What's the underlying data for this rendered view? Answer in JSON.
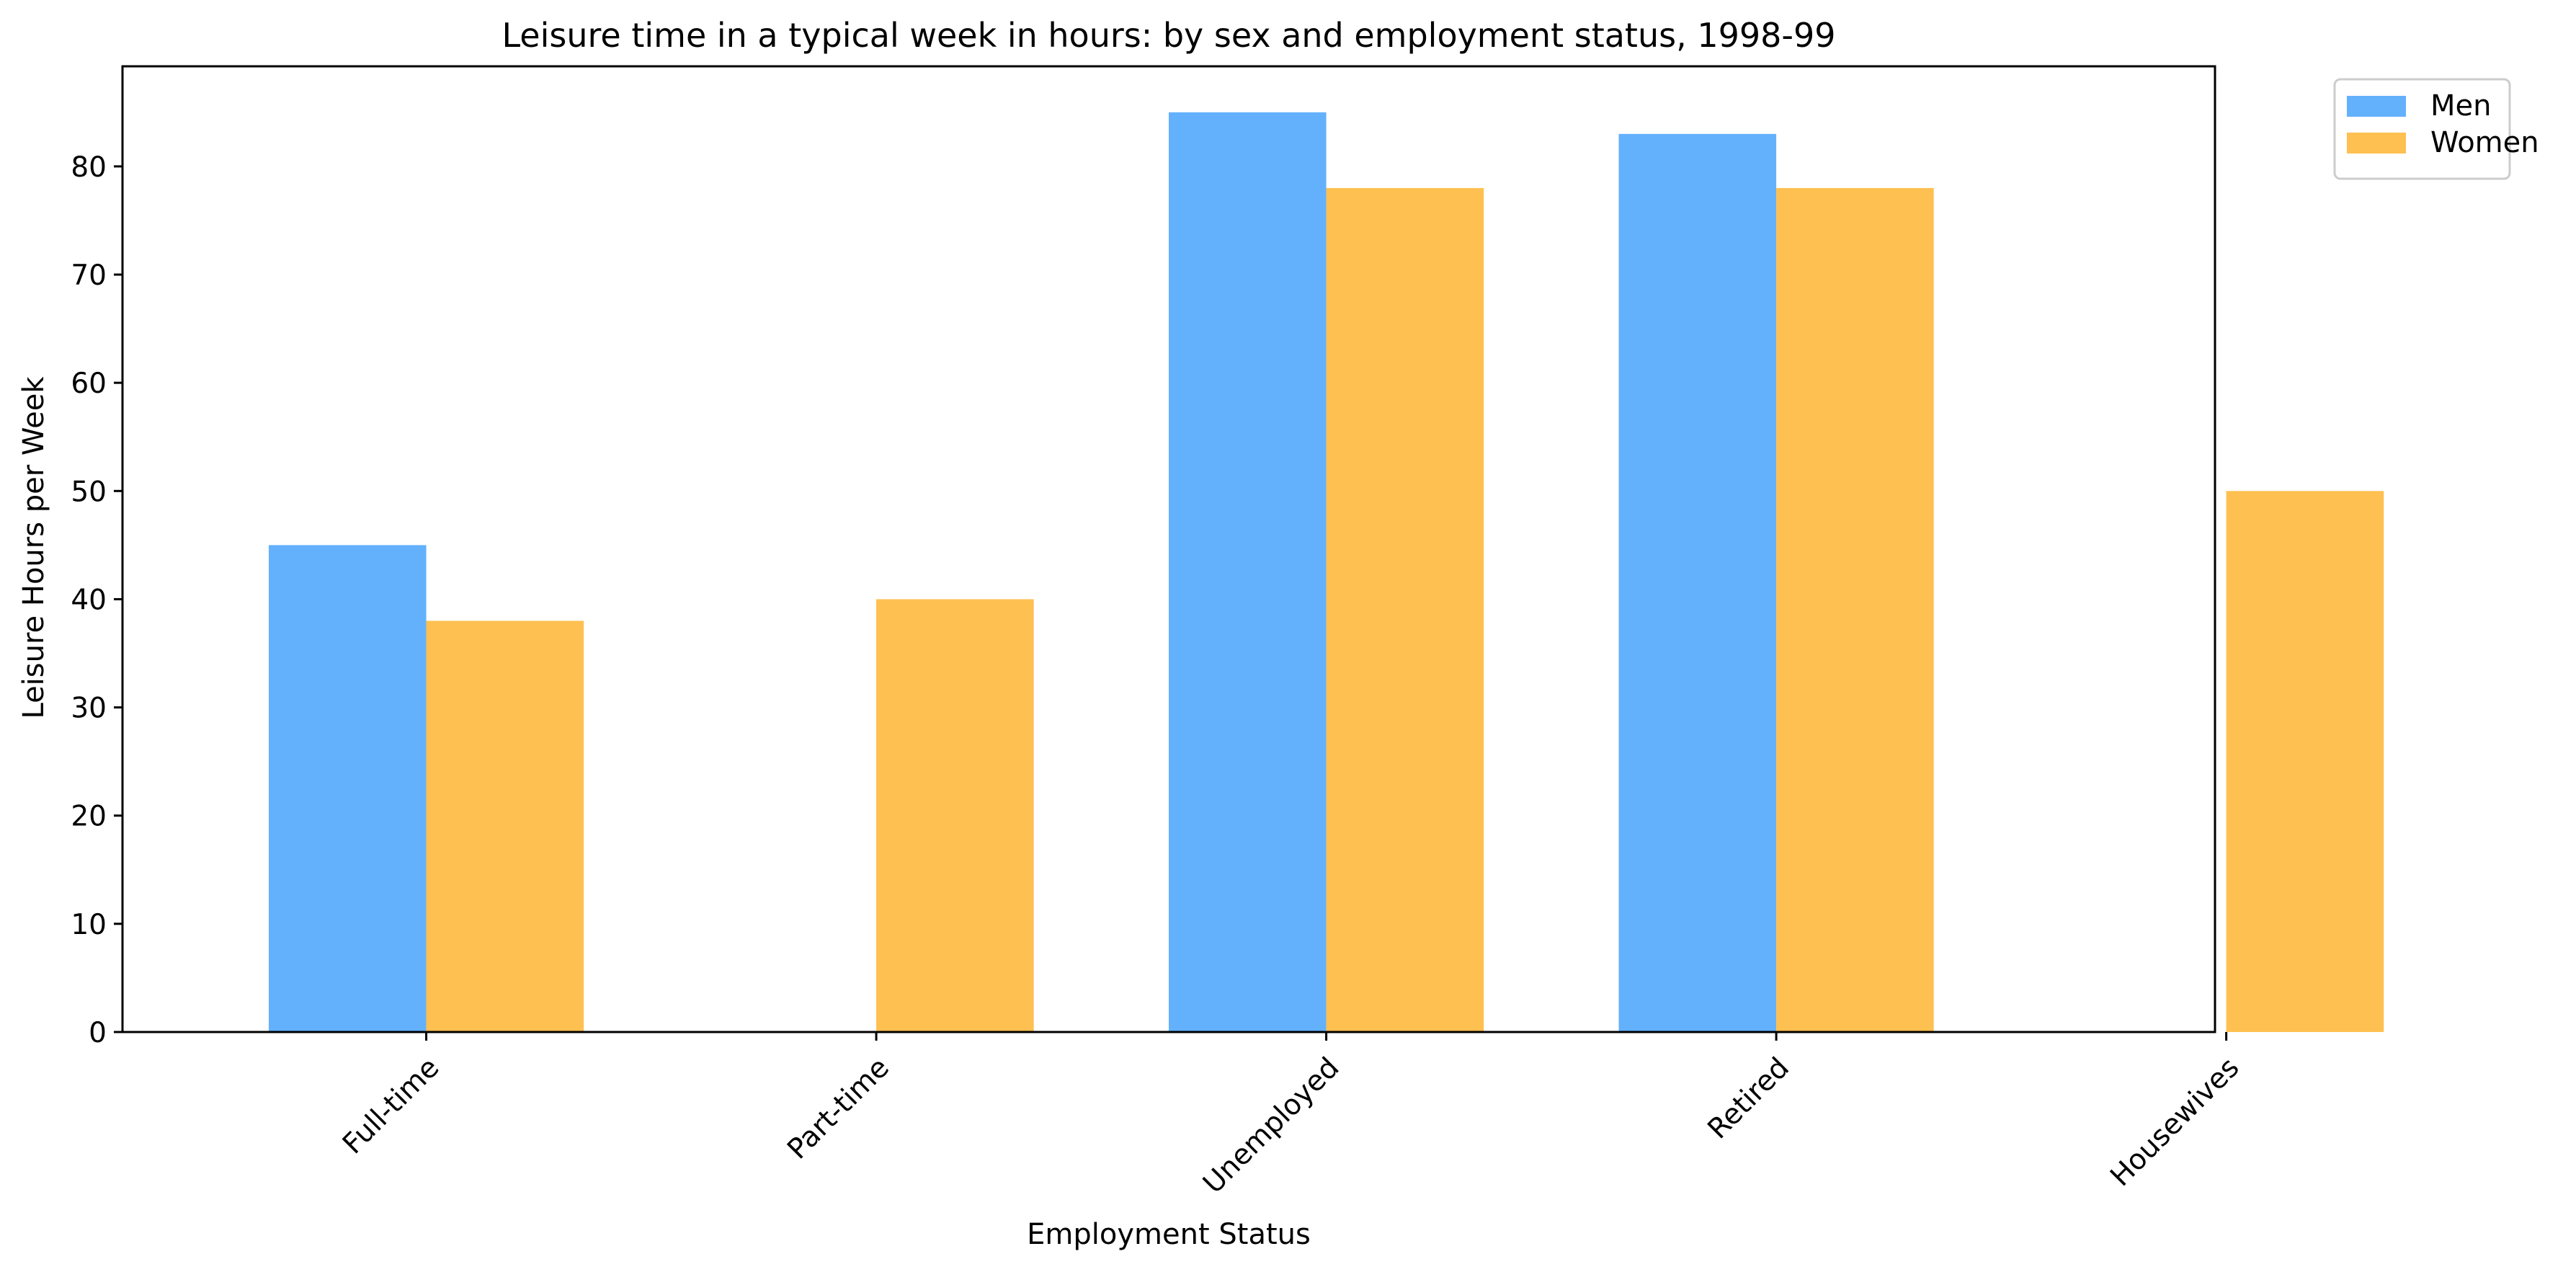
{
  "chart_data": {
    "type": "bar",
    "title": "Leisure time in a typical week in hours: by sex and employment status, 1998-99",
    "xlabel": "Employment Status",
    "ylabel": "Leisure Hours per Week",
    "categories": [
      "Full-time",
      "Part-time",
      "Unemployed",
      "Retired",
      "Housewives"
    ],
    "series": [
      {
        "name": "Men",
        "color": "#63b1fd",
        "values": [
          45,
          null,
          85,
          83,
          null
        ]
      },
      {
        "name": "Women",
        "color": "#fec050",
        "values": [
          38,
          40,
          78,
          78,
          50
        ]
      }
    ],
    "ylim": [
      0,
      89.25
    ],
    "yticks": [
      0,
      10,
      20,
      30,
      40,
      50,
      60,
      70,
      80
    ],
    "grid": false,
    "legend_position": "outside top-right",
    "xtick_rotation": 45
  }
}
